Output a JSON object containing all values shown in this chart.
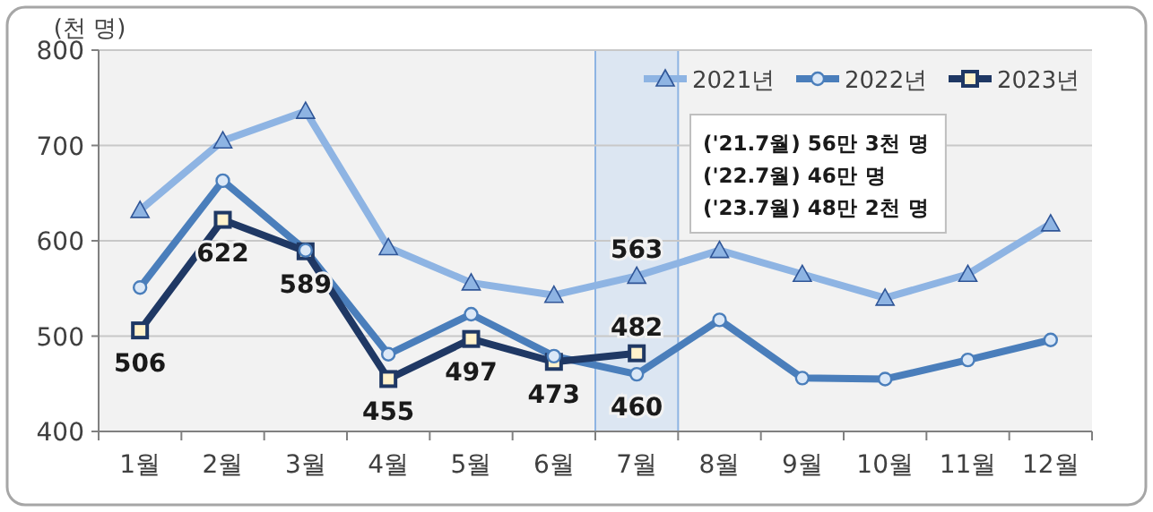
{
  "chart_data": {
    "type": "line",
    "ylabel": "(천 명)",
    "categories": [
      "1월",
      "2월",
      "3월",
      "4월",
      "5월",
      "6월",
      "7월",
      "8월",
      "9월",
      "10월",
      "11월",
      "12월"
    ],
    "series": [
      {
        "name": "2021년",
        "color": "#8eb4e3",
        "marker": "triangle",
        "values": [
          632,
          705,
          736,
          593,
          556,
          543,
          563,
          590,
          565,
          540,
          565,
          618
        ],
        "value_labels": [
          null,
          null,
          null,
          null,
          null,
          null,
          "563",
          null,
          null,
          null,
          null,
          null
        ]
      },
      {
        "name": "2022년",
        "color": "#4a7ebb",
        "marker": "circle",
        "values": [
          551,
          663,
          590,
          481,
          523,
          479,
          460,
          517,
          456,
          455,
          475,
          496
        ],
        "value_labels": [
          null,
          null,
          null,
          null,
          null,
          null,
          "460",
          null,
          null,
          null,
          null,
          null
        ]
      },
      {
        "name": "2023년",
        "color": "#1f3864",
        "marker": "square",
        "values": [
          506,
          622,
          589,
          455,
          497,
          473,
          482,
          null,
          null,
          null,
          null,
          null
        ],
        "value_labels": [
          "506",
          "622",
          "589",
          "455",
          "497",
          "473",
          "482",
          null,
          null,
          null,
          null,
          null
        ]
      }
    ],
    "ylim": [
      400,
      800
    ],
    "yticks": [
      400,
      500,
      600,
      700,
      800
    ],
    "grid": "y",
    "legend": "top right",
    "line_style": "solid",
    "bands": [
      {
        "axis": "x",
        "from": "7월",
        "to": "7월",
        "color": "#dce6f2"
      }
    ],
    "annotations": [
      "('21.7월) 56만 3천 명",
      "('22.7월) 46만 명",
      "('23.7월) 48만 2천 명"
    ]
  }
}
